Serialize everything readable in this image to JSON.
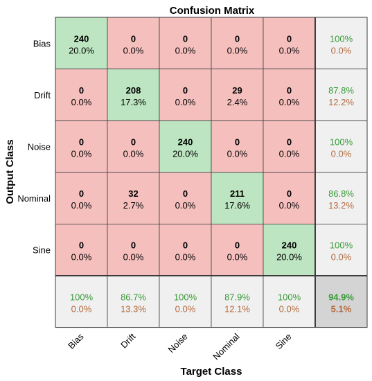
{
  "chart_data": {
    "type": "heatmap",
    "title": "Confusion Matrix",
    "xlabel": "Target Class",
    "ylabel": "Output Class",
    "classes": [
      "Bias",
      "Drift",
      "Noise",
      "Nominal",
      "Sine"
    ],
    "matrix": [
      [
        240,
        0,
        0,
        0,
        0
      ],
      [
        0,
        208,
        0,
        29,
        0
      ],
      [
        0,
        0,
        240,
        0,
        0
      ],
      [
        0,
        32,
        0,
        211,
        0
      ],
      [
        0,
        0,
        0,
        0,
        240
      ]
    ],
    "matrix_percent": [
      [
        "20.0%",
        "0.0%",
        "0.0%",
        "0.0%",
        "0.0%"
      ],
      [
        "0.0%",
        "17.3%",
        "0.0%",
        "2.4%",
        "0.0%"
      ],
      [
        "0.0%",
        "0.0%",
        "20.0%",
        "0.0%",
        "0.0%"
      ],
      [
        "0.0%",
        "2.7%",
        "0.0%",
        "17.6%",
        "0.0%"
      ],
      [
        "0.0%",
        "0.0%",
        "0.0%",
        "0.0%",
        "20.0%"
      ]
    ],
    "row_summary": [
      {
        "correct": "100%",
        "error": "0.0%"
      },
      {
        "correct": "87.8%",
        "error": "12.2%"
      },
      {
        "correct": "100%",
        "error": "0.0%"
      },
      {
        "correct": "86.8%",
        "error": "13.2%"
      },
      {
        "correct": "100%",
        "error": "0.0%"
      }
    ],
    "col_summary": [
      {
        "correct": "100%",
        "error": "0.0%"
      },
      {
        "correct": "86.7%",
        "error": "13.3%"
      },
      {
        "correct": "100%",
        "error": "0.0%"
      },
      {
        "correct": "87.9%",
        "error": "12.1%"
      },
      {
        "correct": "100%",
        "error": "0.0%"
      }
    ],
    "overall": {
      "correct": "94.9%",
      "error": "5.1%"
    },
    "colors": {
      "diagonal": "#bde5c1",
      "off_diagonal": "#f5bfbe",
      "summary": "#f0f0f0",
      "overall": "#d4d4d4",
      "correct_text": "#3b9b3b",
      "error_text": "#b36a3d",
      "grid": "#3c3c3c"
    }
  }
}
